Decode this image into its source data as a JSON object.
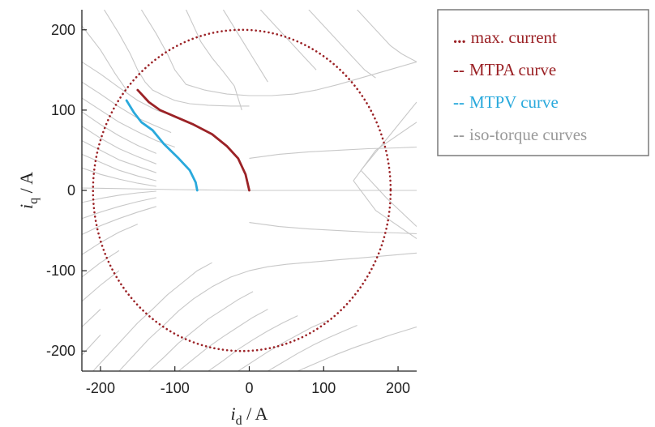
{
  "chart_data": {
    "type": "line",
    "xlabel": {
      "var": "i",
      "sub": "d",
      "unit": " / A"
    },
    "ylabel": {
      "var": "i",
      "sub": "q",
      "unit": " / A"
    },
    "xlim": [
      -225,
      225
    ],
    "ylim": [
      -225,
      225
    ],
    "xticks": [
      "-200",
      "-100",
      "0",
      "100",
      "200"
    ],
    "yticks": [
      "200",
      "100",
      "0",
      "-100",
      "-200"
    ],
    "grid": false,
    "legend_position": "right",
    "colors": {
      "max_current": "#9b2226",
      "mtpa": "#9b2226",
      "mtpv": "#29a9dc",
      "iso_torque": "#c8c8c8",
      "axes": "#222222"
    },
    "legend": [
      {
        "marker": "...",
        "label": "max. current",
        "color": "#9b2226"
      },
      {
        "marker": "--",
        "label": "MTPA curve",
        "color": "#9b2226"
      },
      {
        "marker": "--",
        "label": "MTPV curve",
        "color": "#29a9dc"
      },
      {
        "marker": "--",
        "label": "iso-torque curves",
        "color": "#9a9a9a"
      }
    ],
    "series": [
      {
        "key": "max_current",
        "name": "max. current",
        "style": "dotted",
        "circle": {
          "cx": -10,
          "cy": 0,
          "r": 200
        }
      },
      {
        "key": "mtpa",
        "name": "MTPA curve",
        "style": "solid",
        "x": [
          0,
          -5,
          -15,
          -30,
          -50,
          -75,
          -100,
          -120,
          -135,
          -150
        ],
        "y": [
          0,
          20,
          40,
          55,
          70,
          82,
          92,
          100,
          110,
          125
        ]
      },
      {
        "key": "mtpv",
        "name": "MTPV curve",
        "style": "solid",
        "x": [
          -70,
          -72,
          -80,
          -95,
          -115,
          -130,
          -145,
          -155,
          -165
        ],
        "y": [
          0,
          10,
          25,
          40,
          58,
          75,
          85,
          97,
          112
        ]
      },
      {
        "key": "iso_torque",
        "name": "iso-torque curves",
        "style": "solid",
        "curves": [
          {
            "x": [
              -225,
              -200,
              -180,
              -165
            ],
            "y": [
              205,
              175,
              145,
              125
            ]
          },
          {
            "x": [
              -195,
              -175,
              -160,
              -150,
              -140,
              -130,
              -115,
              -100,
              -80,
              -55,
              -25,
              0
            ],
            "y": [
              225,
              195,
              170,
              150,
              135,
              125,
              118,
              112,
              108,
              106,
              105,
              105
            ]
          },
          {
            "x": [
              -145,
              -125,
              -110,
              -100,
              -85,
              -60,
              -30,
              0,
              30,
              60,
              90,
              120,
              150,
              180,
              225
            ],
            "y": [
              225,
              195,
              170,
              150,
              132,
              125,
              120,
              118,
              118,
              120,
              125,
              132,
              140,
              148,
              160
            ]
          },
          {
            "x": [
              -85,
              -75,
              -65,
              -50,
              -35,
              -20,
              -10
            ],
            "y": [
              225,
              205,
              185,
              165,
              148,
              130,
              100
            ]
          },
          {
            "x": [
              -35,
              -25,
              -15,
              -5,
              5,
              15,
              25
            ],
            "y": [
              225,
              210,
              195,
              180,
              165,
              150,
              135
            ]
          },
          {
            "x": [
              15,
              30,
              45,
              60,
              75,
              90
            ],
            "y": [
              225,
              210,
              195,
              180,
              165,
              150
            ]
          },
          {
            "x": [
              80,
              95,
              110,
              125,
              140,
              155,
              170
            ],
            "y": [
              225,
              210,
              195,
              180,
              165,
              150,
              140
            ]
          },
          {
            "x": [
              145,
              160,
              175,
              190,
              205,
              225
            ],
            "y": [
              225,
              210,
              195,
              180,
              170,
              160
            ]
          },
          {
            "x": [
              -225,
              -200,
              -175,
              -150,
              -125,
              -100
            ],
            "y": [
              160,
              145,
              128,
              112,
              100,
              92
            ]
          },
          {
            "x": [
              -225,
              -200,
              -175,
              -150,
              -125,
              -105
            ],
            "y": [
              135,
              120,
              104,
              90,
              80,
              72
            ]
          },
          {
            "x": [
              -225,
              -200,
              -175,
              -150,
              -125,
              -100
            ],
            "y": [
              115,
              100,
              85,
              73,
              62,
              54
            ]
          },
          {
            "x": [
              -225,
              -200,
              -175,
              -150,
              -125
            ],
            "y": [
              98,
              82,
              68,
              56,
              46
            ]
          },
          {
            "x": [
              -225,
              -200,
              -175,
              -150,
              -125
            ],
            "y": [
              80,
              65,
              52,
              42,
              33
            ]
          },
          {
            "x": [
              -225,
              -200,
              -175,
              -150,
              -125
            ],
            "y": [
              62,
              50,
              38,
              30,
              22
            ]
          },
          {
            "x": [
              -225,
              -200,
              -175,
              -150,
              -125
            ],
            "y": [
              45,
              35,
              25,
              18,
              12
            ]
          },
          {
            "x": [
              -225,
              -200,
              -175,
              -150,
              -125
            ],
            "y": [
              28,
              20,
              14,
              9,
              5
            ]
          },
          {
            "x": [
              -225,
              -160,
              -100,
              -50,
              0,
              50,
              100,
              150,
              200,
              225
            ],
            "y": [
              3,
              2,
              1,
              0.5,
              0,
              0,
              0,
              0,
              0,
              0
            ]
          },
          {
            "x": [
              -225,
              -200,
              -175,
              -150,
              -125
            ],
            "y": [
              -15,
              -10,
              -6,
              -3,
              -1
            ]
          },
          {
            "x": [
              -225,
              -200,
              -175,
              -150,
              -125
            ],
            "y": [
              -35,
              -27,
              -20,
              -14,
              -9
            ]
          },
          {
            "x": [
              -225,
              -200,
              -175,
              -150,
              -125
            ],
            "y": [
              -55,
              -44,
              -35,
              -27,
              -20
            ]
          },
          {
            "x": [
              -225,
              -200,
              -175,
              -150
            ],
            "y": [
              -80,
              -65,
              -52,
              -42
            ]
          },
          {
            "x": [
              -225,
              -200,
              -175
            ],
            "y": [
              -108,
              -90,
              -75
            ]
          },
          {
            "x": [
              -225,
              -200,
              -175
            ],
            "y": [
              -138,
              -118,
              -100
            ]
          },
          {
            "x": [
              -225,
              -200
            ],
            "y": [
              -170,
              -148
            ]
          },
          {
            "x": [
              -225,
              -200
            ],
            "y": [
              -205,
              -180
            ]
          },
          {
            "x": [
              -210,
              -190,
              -170,
              -150,
              -130,
              -110,
              -90,
              -70,
              -50
            ],
            "y": [
              -225,
              -205,
              -185,
              -165,
              -148,
              -130,
              -115,
              -100,
              -90
            ]
          },
          {
            "x": [
              -175,
              -155,
              -135,
              -115,
              -95,
              -75,
              -50,
              -25,
              0,
              25,
              50,
              75,
              100,
              125,
              150,
              175,
              200,
              225
            ],
            "y": [
              -225,
              -205,
              -185,
              -168,
              -150,
              -135,
              -120,
              -108,
              -100,
              -95,
              -92,
              -90,
              -88,
              -86,
              -84,
              -82,
              -80,
              -78
            ]
          },
          {
            "x": [
              -135,
              -115,
              -95,
              -75,
              -55,
              -35,
              -15,
              5
            ],
            "y": [
              -225,
              -208,
              -190,
              -175,
              -160,
              -148,
              -136,
              -126
            ]
          },
          {
            "x": [
              -95,
              -75,
              -55,
              -35,
              -15,
              5,
              25
            ],
            "y": [
              -225,
              -210,
              -195,
              -182,
              -170,
              -158,
              -148
            ]
          },
          {
            "x": [
              -55,
              -35,
              -15,
              5,
              25,
              45,
              65
            ],
            "y": [
              -225,
              -212,
              -198,
              -186,
              -175,
              -165,
              -156
            ]
          },
          {
            "x": [
              -15,
              5,
              25,
              45,
              65,
              85,
              105
            ],
            "y": [
              -225,
              -213,
              -201,
              -190,
              -180,
              -170,
              -162
            ]
          },
          {
            "x": [
              25,
              45,
              65,
              85,
              105,
              125,
              145
            ],
            "y": [
              -225,
              -214,
              -203,
              -193,
              -184,
              -176,
              -168
            ]
          },
          {
            "x": [
              65,
              90,
              115,
              140,
              165,
              190,
              225
            ],
            "y": [
              -225,
              -215,
              -205,
              -196,
              -188,
              -180,
              -170
            ]
          },
          {
            "x": [
              0,
              40,
              80,
              120,
              160,
              200,
              225
            ],
            "y": [
              -40,
              -45,
              -48,
              -50,
              -52,
              -53,
              -54
            ]
          },
          {
            "x": [
              0,
              40,
              80,
              120,
              160,
              200,
              225
            ],
            "y": [
              40,
              45,
              48,
              50,
              52,
              53,
              54
            ]
          },
          {
            "x": [
              225,
              190,
              150,
              185,
              225
            ],
            "y": [
              110,
              70,
              25,
              -10,
              -45
            ]
          },
          {
            "x": [
              225,
              170,
              140,
              170,
              225
            ],
            "y": [
              85,
              50,
              12,
              -25,
              -60
            ]
          }
        ]
      }
    ]
  }
}
